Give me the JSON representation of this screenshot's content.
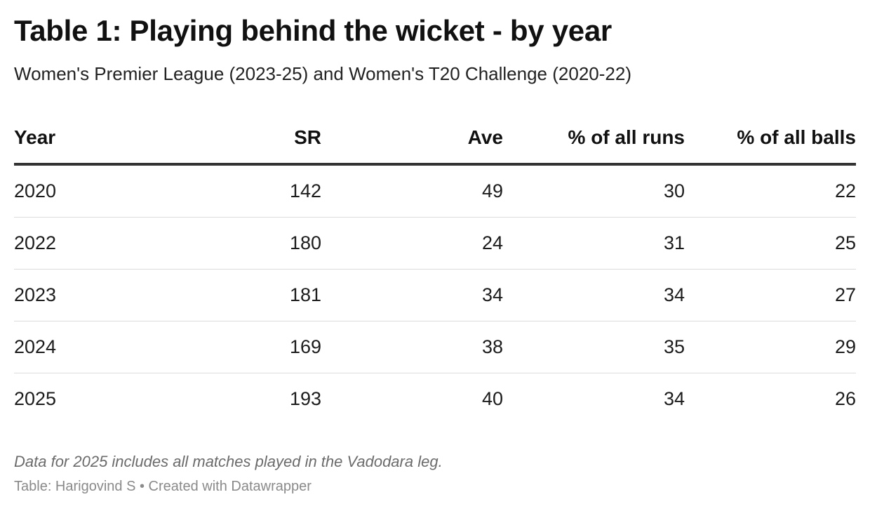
{
  "chart_data": {
    "type": "table",
    "title": "Table 1: Playing behind the wicket - by year",
    "subtitle": "Women's Premier League (2023-25) and Women's T20 Challenge (2020-22)",
    "columns": [
      "Year",
      "SR",
      "Ave",
      "% of all runs",
      "% of all balls"
    ],
    "rows": [
      [
        "2020",
        "142",
        "49",
        "30",
        "22"
      ],
      [
        "2022",
        "180",
        "24",
        "31",
        "25"
      ],
      [
        "2023",
        "181",
        "34",
        "34",
        "27"
      ],
      [
        "2024",
        "169",
        "38",
        "35",
        "29"
      ],
      [
        "2025",
        "193",
        "40",
        "34",
        "26"
      ]
    ],
    "note": "Data for 2025 includes all matches played in the Vadodara leg.",
    "source": "Table: Harigovind S • Created with Datawrapper"
  }
}
